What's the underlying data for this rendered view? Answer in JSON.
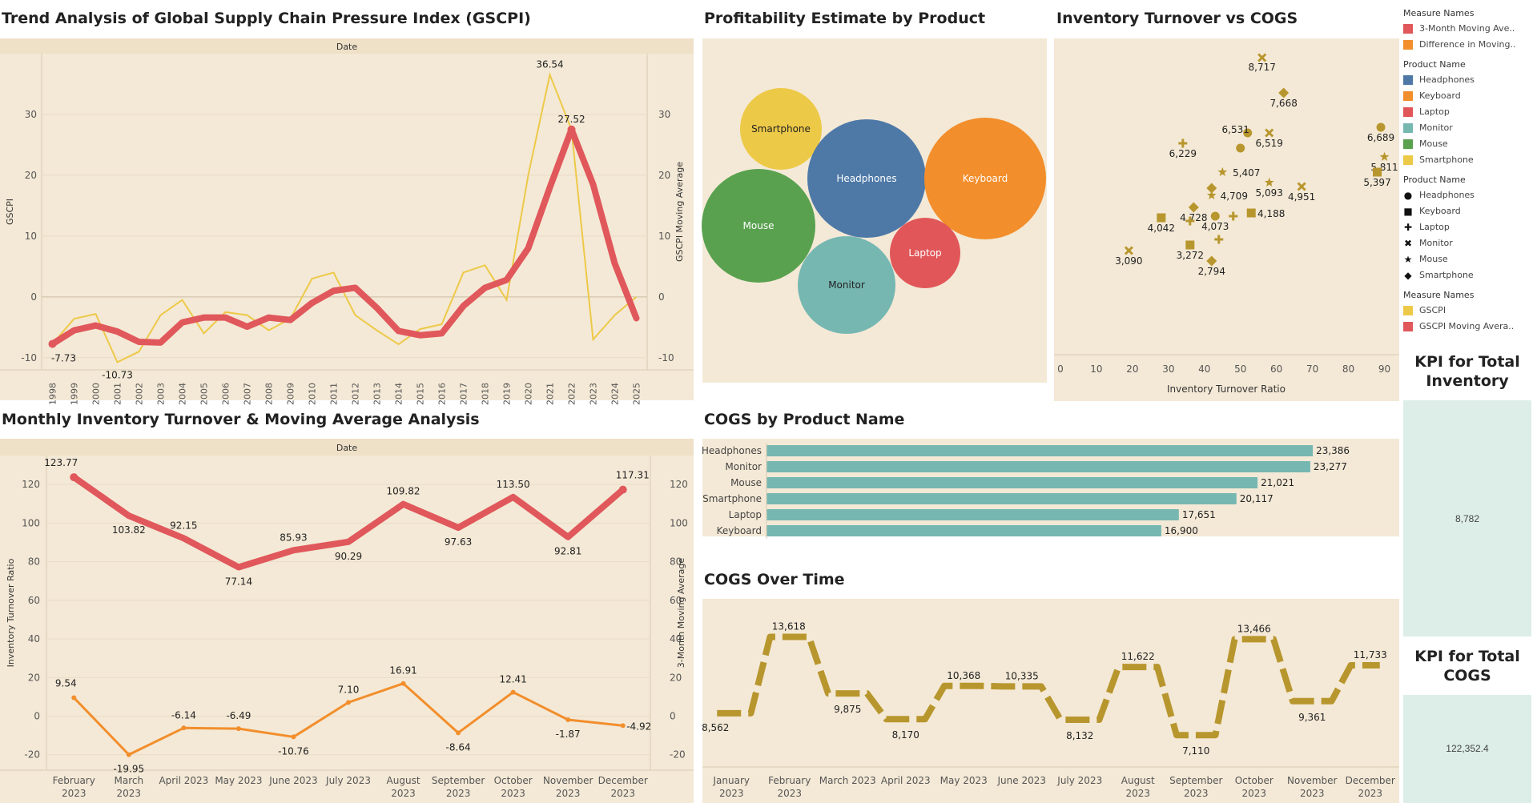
{
  "titles": {
    "gscpi": "Trend Analysis of Global Supply Chain Pressure Index (GSCPI)",
    "profit": "Profitability Estimate by Product",
    "scatter": "Inventory Turnover vs COGS",
    "monthly": "Monthly Inventory Turnover & Moving Average Analysis",
    "cogs_product": "COGS by Product Name",
    "cogs_time": "COGS Over Time",
    "kpi_inventory": "KPI for Total Inventory",
    "kpi_cogs": "KPI for Total COGS"
  },
  "kpis": {
    "total_inventory": "8,782",
    "total_cogs": "122,352.4"
  },
  "legend": {
    "measure_names_1": {
      "title": "Measure Names",
      "items": [
        {
          "label": "3-Month Moving Ave..",
          "color": "#e0585b"
        },
        {
          "label": "Difference in Moving..",
          "color": "#f28e2c"
        }
      ]
    },
    "product_colors": {
      "title": "Product Name",
      "items": [
        {
          "label": "Headphones",
          "color": "#4e79a7"
        },
        {
          "label": "Keyboard",
          "color": "#f28e2c"
        },
        {
          "label": "Laptop",
          "color": "#e15759"
        },
        {
          "label": "Monitor",
          "color": "#76b7b2"
        },
        {
          "label": "Mouse",
          "color": "#59a14f"
        },
        {
          "label": "Smartphone",
          "color": "#edc948"
        }
      ]
    },
    "product_shapes": {
      "title": "Product Name",
      "items": [
        {
          "label": "Headphones",
          "shape": "●"
        },
        {
          "label": "Keyboard",
          "shape": "■"
        },
        {
          "label": "Laptop",
          "shape": "✚"
        },
        {
          "label": "Monitor",
          "shape": "✖"
        },
        {
          "label": "Mouse",
          "shape": "★"
        },
        {
          "label": "Smartphone",
          "shape": "◆"
        }
      ]
    },
    "measure_names_2": {
      "title": "Measure Names",
      "items": [
        {
          "label": "GSCPI",
          "color": "#edc948"
        },
        {
          "label": "GSCPI Moving Avera..",
          "color": "#e0585b"
        }
      ]
    }
  },
  "chart_data": [
    {
      "id": "gscpi",
      "type": "line",
      "title": "Trend Analysis of Global Supply Chain Pressure Index (GSCPI)",
      "header": "Date",
      "ylabel": "GSCPI",
      "y2label": "GSCPI Moving Average",
      "ylim": [
        -12,
        40
      ],
      "yticks": [
        -10,
        0,
        10,
        20,
        30
      ],
      "x": [
        "1998",
        "1999",
        "2000",
        "2001",
        "2002",
        "2003",
        "2004",
        "2005",
        "2006",
        "2007",
        "2008",
        "2009",
        "2010",
        "2011",
        "2012",
        "2013",
        "2014",
        "2015",
        "2016",
        "2017",
        "2018",
        "2019",
        "2020",
        "2021",
        "2022",
        "2023",
        "2024",
        "2025"
      ],
      "series": [
        {
          "name": "GSCPI",
          "color": "#edc948",
          "values": [
            -7.73,
            -3.6,
            -2.8,
            -10.73,
            -9.0,
            -3.0,
            -0.5,
            -6.0,
            -2.5,
            -3.0,
            -5.5,
            -3.6,
            3.0,
            4.0,
            -3.0,
            -5.5,
            -7.8,
            -5.3,
            -4.5,
            4.0,
            5.2,
            -0.5,
            20.0,
            36.54,
            27.52,
            -7.0,
            -3.0,
            0
          ]
        },
        {
          "name": "GSCPI Moving Average",
          "color": "#e0585b",
          "values": [
            -7.73,
            -5.5,
            -4.7,
            -5.7,
            -7.4,
            -7.5,
            -4.2,
            -3.4,
            -3.4,
            -4.9,
            -3.4,
            -3.8,
            -1.0,
            1.0,
            1.5,
            -1.8,
            -5.6,
            -6.3,
            -6.0,
            -1.5,
            1.5,
            2.8,
            8.0,
            18.0,
            27.52,
            18.5,
            5.5,
            -3.5
          ]
        }
      ],
      "labels": [
        {
          "series": 0,
          "index": 0,
          "text": "-7.73"
        },
        {
          "series": 0,
          "index": 3,
          "text": "-10.73"
        },
        {
          "series": 0,
          "index": 23,
          "text": "36.54"
        },
        {
          "series": 1,
          "index": 24,
          "text": "27.52"
        }
      ]
    },
    {
      "id": "profit",
      "type": "bubble",
      "title": "Profitability Estimate by Product",
      "bubbles": [
        {
          "name": "Smartphone",
          "color": "#edc948"
        },
        {
          "name": "Headphones",
          "color": "#4e79a7"
        },
        {
          "name": "Keyboard",
          "color": "#f28e2c"
        },
        {
          "name": "Mouse",
          "color": "#59a14f"
        },
        {
          "name": "Laptop",
          "color": "#e15759"
        },
        {
          "name": "Monitor",
          "color": "#76b7b2"
        }
      ]
    },
    {
      "id": "scatter",
      "type": "scatter",
      "title": "Inventory Turnover vs COGS",
      "xlabel": "Inventory Turnover Ratio",
      "xlim": [
        0,
        93
      ],
      "xticks": [
        0,
        10,
        20,
        30,
        40,
        50,
        60,
        70,
        80,
        90
      ],
      "color": "#b8962e",
      "points": [
        {
          "x": 56,
          "label": "8,717",
          "product": "Monitor"
        },
        {
          "x": 62,
          "label": "7,668",
          "product": "Smartphone"
        },
        {
          "x": 52,
          "label": "6,531",
          "product": "Headphones"
        },
        {
          "x": 58,
          "label": "6,519",
          "product": "Monitor"
        },
        {
          "x": 50,
          "label": "",
          "product": "Headphones"
        },
        {
          "x": 34,
          "label": "6,229",
          "product": "Laptop"
        },
        {
          "x": 89,
          "label": "6,689",
          "product": "Headphones"
        },
        {
          "x": 90,
          "label": "5,811",
          "product": "Mouse"
        },
        {
          "x": 88,
          "label": "5,397",
          "product": "Keyboard"
        },
        {
          "x": 45,
          "label": "5,407",
          "product": "Mouse"
        },
        {
          "x": 58,
          "label": "5,093",
          "product": "Mouse"
        },
        {
          "x": 67,
          "label": "4,951",
          "product": "Monitor"
        },
        {
          "x": 42,
          "label": "",
          "product": "Smartphone"
        },
        {
          "x": 42,
          "label": "4,709",
          "product": "Mouse"
        },
        {
          "x": 37,
          "label": "4,728",
          "product": "Smartphone"
        },
        {
          "x": 53,
          "label": "4,188",
          "product": "Keyboard"
        },
        {
          "x": 48,
          "label": "",
          "product": "Laptop"
        },
        {
          "x": 43,
          "label": "4,073",
          "product": "Headphones"
        },
        {
          "x": 36,
          "label": "",
          "product": "Laptop"
        },
        {
          "x": 28,
          "label": "4,042",
          "product": "Keyboard"
        },
        {
          "x": 36,
          "label": "3,272",
          "product": "Keyboard"
        },
        {
          "x": 44,
          "label": "",
          "product": "Laptop"
        },
        {
          "x": 19,
          "label": "3,090",
          "product": "Monitor"
        },
        {
          "x": 42,
          "label": "2,794",
          "product": "Smartphone"
        }
      ]
    },
    {
      "id": "monthly",
      "type": "line",
      "title": "Monthly Inventory Turnover & Moving Average Analysis",
      "header": "Date",
      "ylabel": "Inventory Turnover Ratio",
      "y2label": "3-Month Moving Average",
      "ylim": [
        -28,
        135
      ],
      "yticks": [
        -20,
        0,
        20,
        40,
        60,
        80,
        100,
        120
      ],
      "x": [
        [
          "February",
          "2023"
        ],
        [
          "March",
          "2023"
        ],
        [
          "April 2023"
        ],
        [
          "May 2023"
        ],
        [
          "June 2023"
        ],
        [
          "July 2023"
        ],
        [
          "August",
          "2023"
        ],
        [
          "September",
          "2023"
        ],
        [
          "October",
          "2023"
        ],
        [
          "November",
          "2023"
        ],
        [
          "December",
          "2023"
        ]
      ],
      "series": [
        {
          "name": "3-Month Moving Average",
          "color": "#e0585b",
          "values": [
            123.77,
            103.82,
            92.15,
            77.14,
            85.93,
            90.29,
            109.82,
            97.63,
            113.5,
            92.81,
            117.31
          ]
        },
        {
          "name": "Difference in Moving Average",
          "color": "#f28e2c",
          "values": [
            9.54,
            -19.95,
            -6.14,
            -6.49,
            -10.76,
            7.1,
            16.91,
            -8.64,
            12.41,
            -1.87,
            -4.92
          ]
        }
      ]
    },
    {
      "id": "cogs_product",
      "type": "bar",
      "title": "COGS by Product Name",
      "categories": [
        "Headphones",
        "Monitor",
        "Mouse",
        "Smartphone",
        "Laptop",
        "Keyboard"
      ],
      "values": [
        23386,
        23277,
        21021,
        20117,
        17651,
        16900
      ],
      "labels": [
        "23,386",
        "23,277",
        "21,021",
        "20,117",
        "17,651",
        "16,900"
      ],
      "xlim": [
        0,
        24000
      ],
      "color": "#76b7b2"
    },
    {
      "id": "cogs_time",
      "type": "line",
      "title": "COGS Over Time",
      "x": [
        [
          "January",
          "2023"
        ],
        [
          "February",
          "2023"
        ],
        [
          "March 2023"
        ],
        [
          "April 2023"
        ],
        [
          "May 2023"
        ],
        [
          "June 2023"
        ],
        [
          "July 2023"
        ],
        [
          "August",
          "2023"
        ],
        [
          "September",
          "2023"
        ],
        [
          "October",
          "2023"
        ],
        [
          "November",
          "2023"
        ],
        [
          "December",
          "2023"
        ]
      ],
      "values": [
        8562,
        13618,
        9875,
        8170,
        10368,
        10335,
        8132,
        11622,
        7110,
        13466,
        9361,
        11733
      ],
      "labels": [
        "8,562",
        "13,618",
        "9,875",
        "8,170",
        "10,368",
        "10,335",
        "8,132",
        "11,622",
        "7,110",
        "13,466",
        "9,361",
        "11,733"
      ],
      "ylim": [
        5000,
        15500
      ],
      "color": "#b8962e"
    }
  ]
}
